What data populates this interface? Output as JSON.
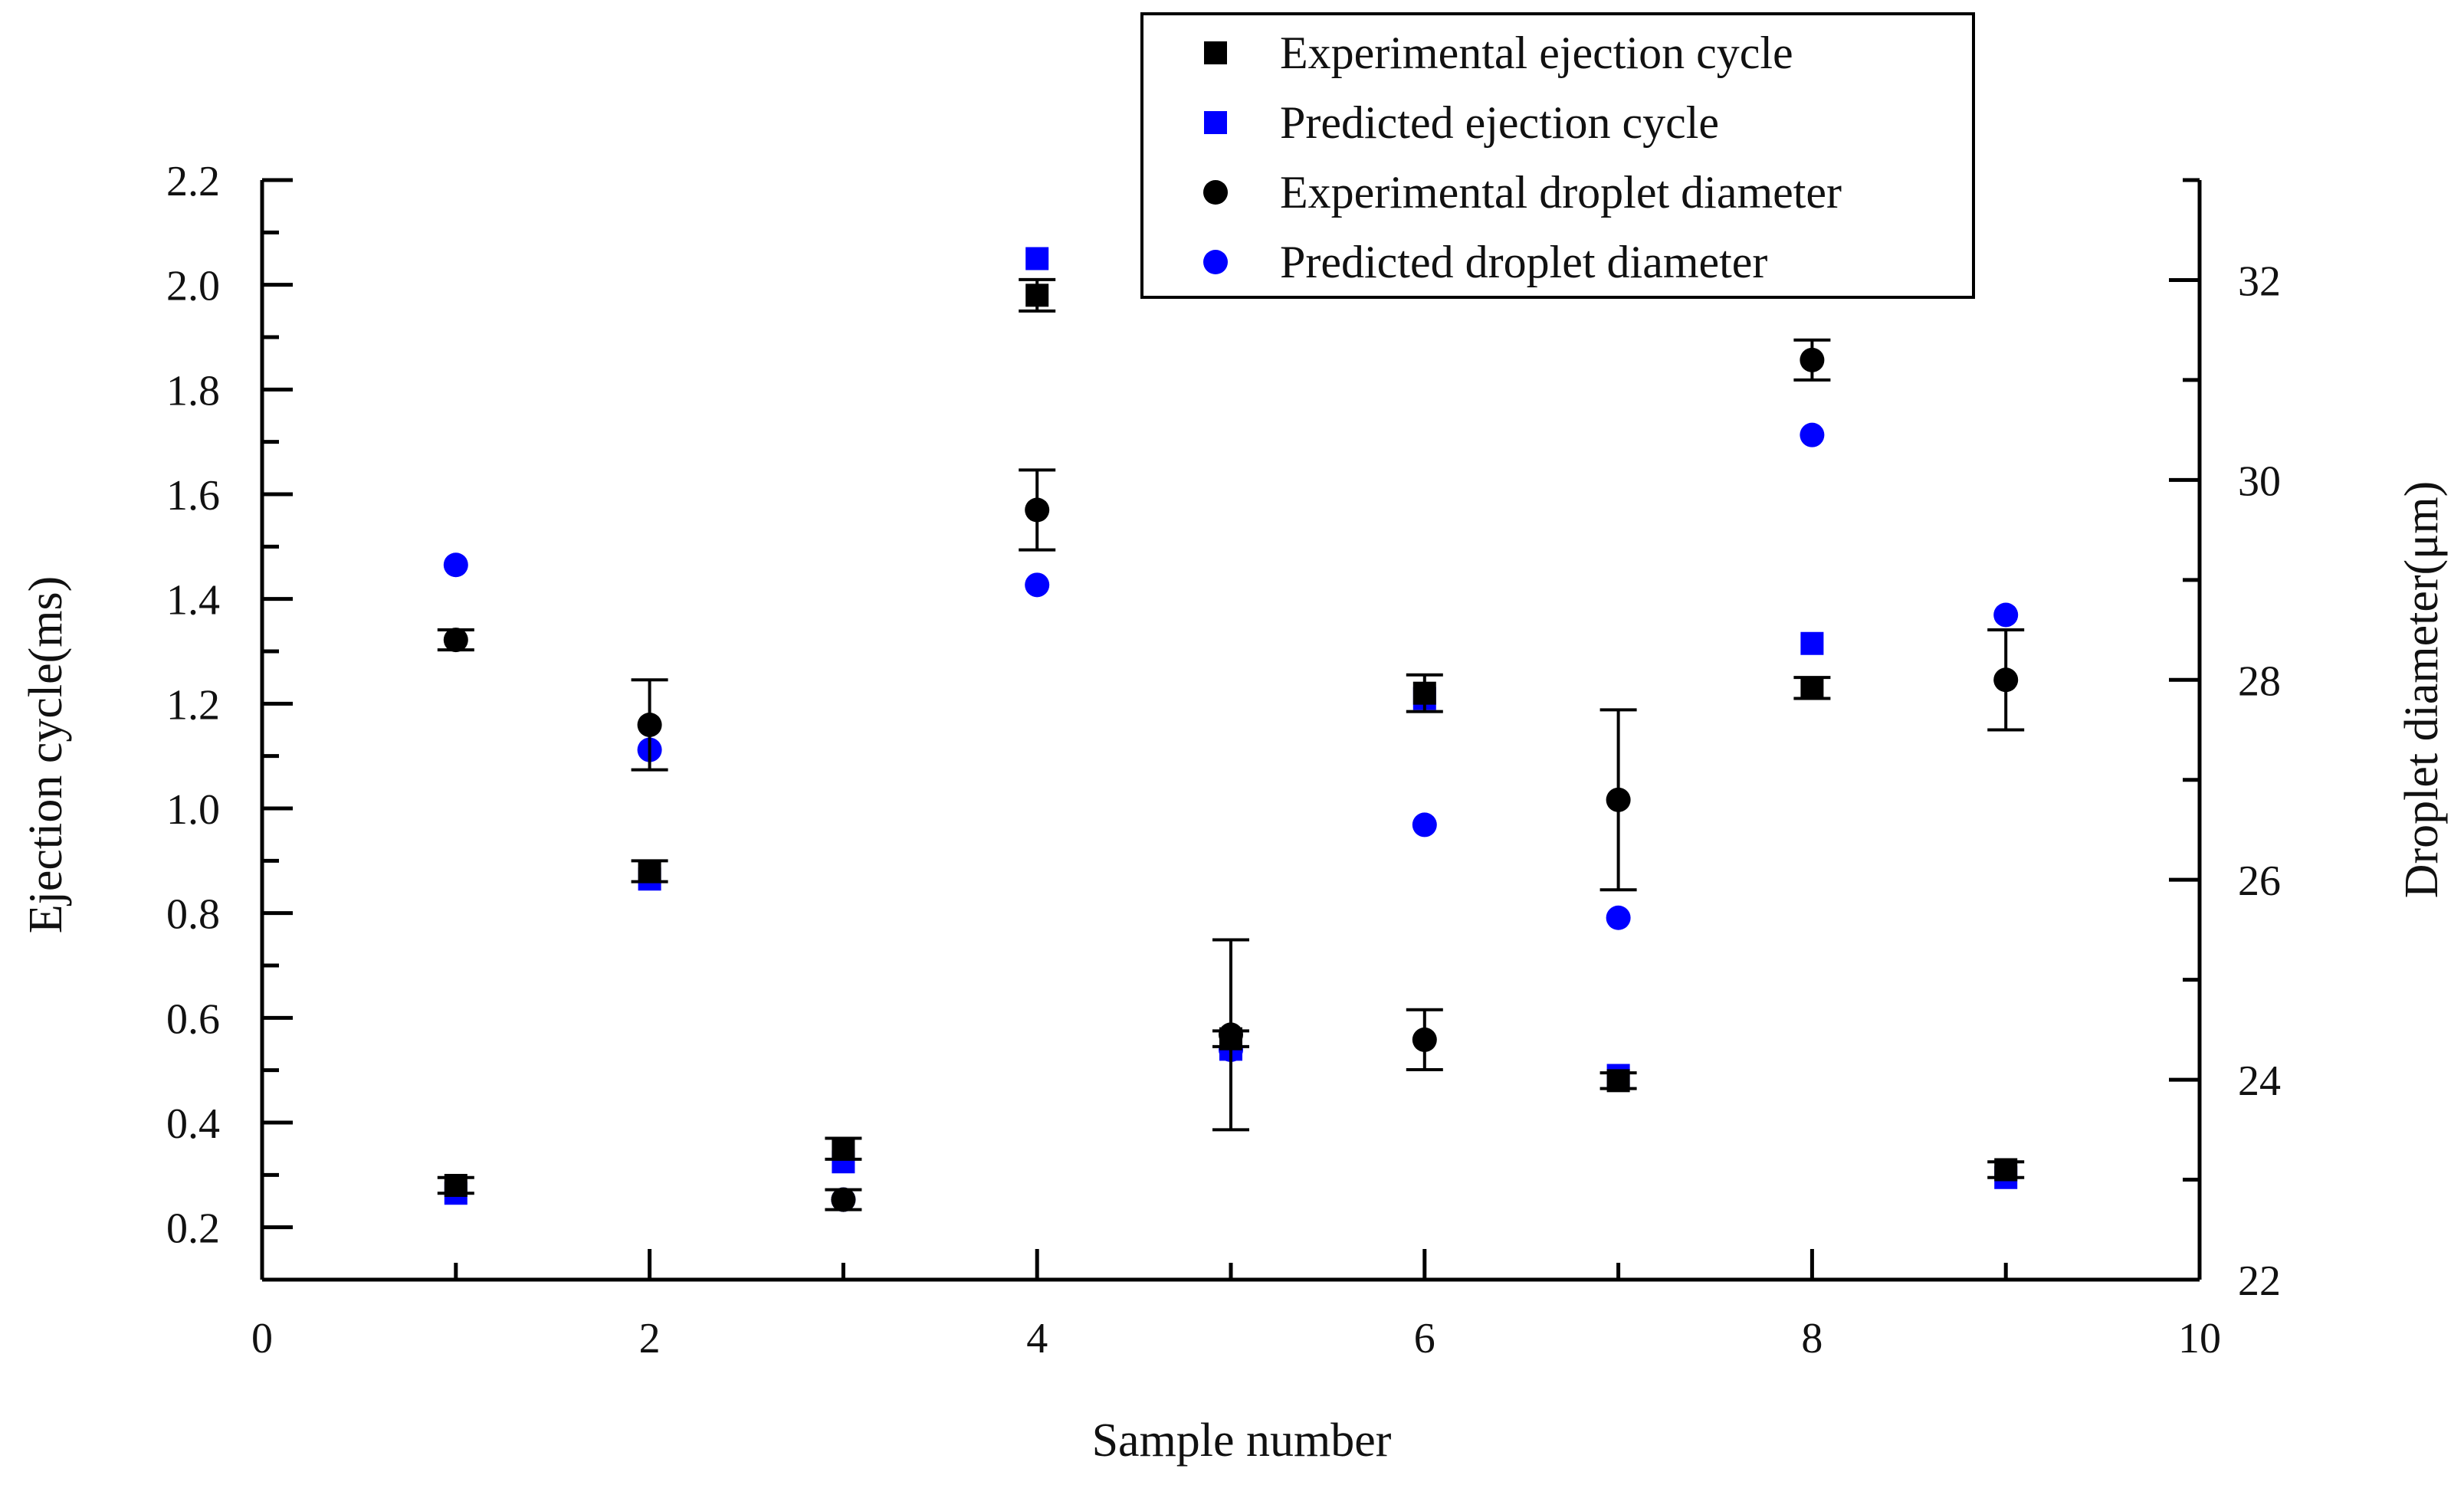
{
  "chart_data": {
    "type": "scatter",
    "title": "",
    "xlabel": "Sample number",
    "ylabel_left": "Ejection  cycle(ms)",
    "ylabel_right": "Droplet  diameter(μm)",
    "xlim": [
      0,
      10
    ],
    "ylim_left": [
      0.1,
      2.2
    ],
    "ylim_right": [
      22,
      33
    ],
    "x_ticks": [
      "0",
      "2",
      "4",
      "6",
      "8",
      "10"
    ],
    "y_left_ticks": [
      "0.2",
      "0.4",
      "0.6",
      "0.8",
      "1.0",
      "1.2",
      "1.4",
      "1.6",
      "1.8",
      "2.0",
      "2.2"
    ],
    "y_right_ticks": [
      "22",
      "24",
      "26",
      "28",
      "30",
      "32"
    ],
    "grid": false,
    "legend_position": "top-center",
    "x": [
      1,
      2,
      3,
      4,
      5,
      6,
      7,
      8,
      9
    ],
    "series": [
      {
        "name": "Experimental ejection cycle",
        "axis": "left",
        "marker": "square",
        "color": "#000000",
        "values": [
          0.28,
          0.88,
          0.35,
          1.98,
          0.56,
          1.22,
          0.48,
          1.23,
          0.31
        ],
        "errors": [
          0.015,
          0.02,
          0.02,
          0.03,
          0.015,
          0.035,
          0.015,
          0.02,
          0.015
        ]
      },
      {
        "name": "Predicted ejection cycle",
        "axis": "left",
        "marker": "square",
        "color": "#0000ff",
        "values": [
          0.265,
          0.865,
          0.325,
          2.05,
          0.54,
          1.21,
          0.49,
          1.315,
          0.295
        ],
        "errors": []
      },
      {
        "name": "Experimental droplet diameter",
        "axis": "right",
        "marker": "circle",
        "color": "#000000",
        "values": [
          28.4,
          27.55,
          22.8,
          29.7,
          24.45,
          24.4,
          26.8,
          31.2,
          28.0
        ],
        "errors": [
          0.1,
          0.45,
          0.1,
          0.4,
          0.95,
          0.3,
          0.9,
          0.2,
          0.5
        ]
      },
      {
        "name": "Predicted droplet diameter",
        "axis": "right",
        "marker": "circle",
        "color": "#0000ff",
        "values": [
          29.15,
          27.3,
          22.8,
          28.95,
          24.3,
          26.55,
          25.62,
          30.45,
          28.65
        ],
        "errors": []
      }
    ]
  }
}
